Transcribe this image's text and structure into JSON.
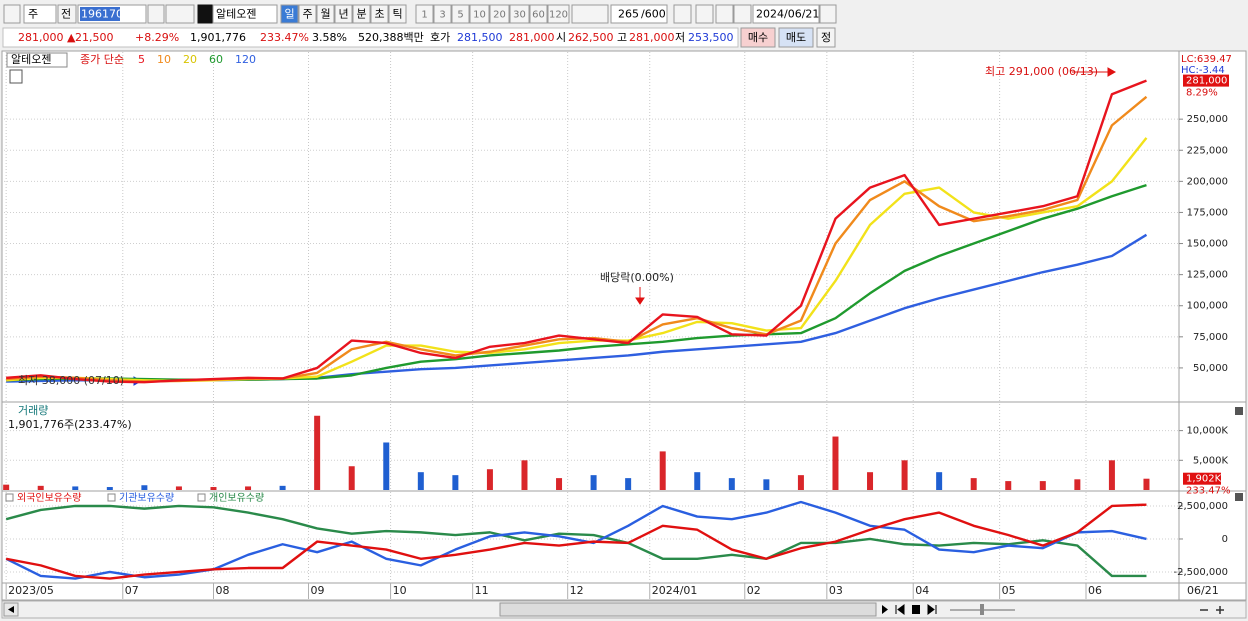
{
  "toolbar": {
    "market": "주",
    "prev": "전",
    "code": "196170",
    "name": "알테오젠",
    "periods": [
      "일",
      "주",
      "월",
      "년",
      "분",
      "초",
      "틱"
    ],
    "intervals": [
      "1",
      "3",
      "5",
      "10",
      "20",
      "30",
      "60",
      "120"
    ],
    "count": "265",
    "max": "/600",
    "date": "2024/06/21"
  },
  "quote": {
    "price": "281,000 ▲",
    "change": "21,500",
    "rate": "+8.29%",
    "volume": "1,901,776",
    "volume_rate": "233.47%",
    "turnover": "3.58%",
    "amount": "520,388백만",
    "ask_label": "호가",
    "ask": "281,500",
    "bid": "281,000",
    "open_label": "시",
    "open": "262,500",
    "high_label": "고",
    "high": "281,000",
    "low_label": "저",
    "low": "253,500",
    "buy": "매수",
    "sell": "매도",
    "fix": "정"
  },
  "chart_data": [
    {
      "type": "line",
      "name": "알테오젠",
      "legend_title": "종가 단순",
      "x": [
        0,
        8,
        16,
        24,
        32,
        40,
        48,
        56,
        64,
        72,
        80,
        88,
        96,
        104,
        112,
        120,
        128,
        136,
        144,
        152,
        160,
        168,
        176,
        184,
        192,
        200,
        208,
        216,
        224,
        232,
        240,
        248,
        256,
        264
      ],
      "series": [
        {
          "name": "5",
          "color": "#e8141e",
          "values": [
            42000,
            44000,
            41000,
            39000,
            38500,
            40000,
            41000,
            42000,
            41500,
            50000,
            72000,
            70000,
            62000,
            58000,
            67000,
            70000,
            76000,
            73000,
            70000,
            93000,
            91000,
            77000,
            76000,
            100000,
            170000,
            195000,
            205000,
            165000,
            170000,
            175000,
            180000,
            188000,
            270000,
            281000
          ]
        },
        {
          "name": "10",
          "color": "#f08a1c",
          "values": [
            41000,
            43000,
            42000,
            40000,
            39000,
            39500,
            40500,
            41500,
            41500,
            46000,
            65000,
            71000,
            65000,
            60000,
            63000,
            68000,
            73000,
            74000,
            71000,
            85000,
            90000,
            82000,
            77000,
            88000,
            150000,
            185000,
            200000,
            180000,
            168000,
            172000,
            177000,
            185000,
            245000,
            268000
          ]
        },
        {
          "name": "20",
          "color": "#f2e21a",
          "values": [
            40000,
            42000,
            42000,
            41000,
            40000,
            39500,
            40000,
            41000,
            41500,
            43000,
            55000,
            68000,
            68000,
            63000,
            62000,
            65000,
            70000,
            72000,
            72000,
            78000,
            87000,
            86000,
            80000,
            82000,
            120000,
            165000,
            190000,
            195000,
            175000,
            170000,
            175000,
            180000,
            200000,
            235000
          ]
        },
        {
          "name": "60",
          "color": "#1f9a2e",
          "values": [
            40000,
            41000,
            41500,
            41500,
            41000,
            40500,
            40500,
            40500,
            41000,
            41500,
            44000,
            50000,
            55000,
            57000,
            60000,
            62000,
            64000,
            67000,
            69000,
            71000,
            74000,
            76000,
            77000,
            78000,
            90000,
            110000,
            128000,
            140000,
            150000,
            160000,
            170000,
            178000,
            188000,
            197000
          ]
        },
        {
          "name": "120",
          "color": "#2f5fe0",
          "values": [
            39000,
            39500,
            40000,
            40000,
            40000,
            40000,
            40000,
            40500,
            41000,
            42000,
            45000,
            47000,
            49000,
            50000,
            52000,
            54000,
            56000,
            58000,
            60000,
            63000,
            65000,
            67000,
            69000,
            71000,
            78000,
            88000,
            98000,
            106000,
            113000,
            120000,
            127000,
            133000,
            140000,
            157000
          ]
        }
      ],
      "ylim": [
        23400,
        304000
      ],
      "yticks": [
        {
          "value": 50000,
          "label": "50,000"
        },
        {
          "value": 75000,
          "label": "75,000"
        },
        {
          "value": 100000,
          "label": "100,000"
        },
        {
          "value": 125000,
          "label": "125,000"
        },
        {
          "value": 150000,
          "label": "150,000"
        },
        {
          "value": 175000,
          "label": "175,000"
        },
        {
          "value": 200000,
          "label": "200,000"
        },
        {
          "value": 225000,
          "label": "225,000"
        },
        {
          "value": 250000,
          "label": "250,000"
        }
      ],
      "grid": true,
      "annotations": [
        "최고 291,000 (06/13)",
        "최저 38,000 (07/10)",
        "배당락(0.00%)"
      ],
      "top_labels": [
        "LC:639.47",
        "HC:-3.44"
      ],
      "last_value": {
        "value": 281000,
        "label": "281,000"
      },
      "last_rate": "8.29%"
    },
    {
      "type": "bar",
      "title": "거래량",
      "subtitle": "1,901,776주(233.47%)",
      "up_color": "#d9262a",
      "down_color": "#1f5fd1",
      "values": [
        900000,
        700000,
        600000,
        500000,
        800000,
        600000,
        500000,
        600000,
        700000,
        12500000,
        4000000,
        8000000,
        3000000,
        2500000,
        3500000,
        5000000,
        2000000,
        2500000,
        2000000,
        6500000,
        3000000,
        2000000,
        1800000,
        2500000,
        9000000,
        3000000,
        5000000,
        3000000,
        2000000,
        1500000,
        1500000,
        1800000,
        5000000,
        1901776
      ],
      "ylim": [
        0,
        14480000
      ],
      "yticks": [
        {
          "value": 5000000,
          "label": "5,000K"
        },
        {
          "value": 10000000,
          "label": "10,000K"
        }
      ],
      "last_value": {
        "value": 1902000,
        "label": "1,902K"
      },
      "last_rate": "233.47%"
    },
    {
      "type": "line",
      "series": [
        {
          "name": "외국인보유수량",
          "color": "#e01010",
          "values": [
            -1500000,
            -2000000,
            -2800000,
            -3000000,
            -2700000,
            -2500000,
            -2300000,
            -2200000,
            -2200000,
            -200000,
            -500000,
            -800000,
            -1500000,
            -1200000,
            -800000,
            -300000,
            -500000,
            -200000,
            -300000,
            1000000,
            700000,
            -800000,
            -1500000,
            -700000,
            -200000,
            700000,
            1500000,
            2000000,
            1000000,
            300000,
            -500000,
            500000,
            2500000,
            2600000
          ]
        },
        {
          "name": "기관보유수량",
          "color": "#2a5fe0",
          "values": [
            -1500000,
            -2800000,
            -3000000,
            -2500000,
            -2900000,
            -2700000,
            -2300000,
            -1200000,
            -400000,
            -1000000,
            -200000,
            -1500000,
            -2000000,
            -800000,
            200000,
            500000,
            200000,
            -300000,
            1000000,
            2500000,
            1700000,
            1500000,
            2000000,
            2800000,
            2000000,
            1000000,
            700000,
            -800000,
            -1000000,
            -500000,
            -700000,
            500000,
            600000,
            0
          ]
        },
        {
          "name": "개인보유수량",
          "color": "#2a8a4a",
          "values": [
            1500000,
            2200000,
            2500000,
            2500000,
            2300000,
            2500000,
            2400000,
            2000000,
            1500000,
            800000,
            400000,
            600000,
            500000,
            300000,
            500000,
            -100000,
            400000,
            300000,
            -300000,
            -1500000,
            -1500000,
            -1200000,
            -1500000,
            -300000,
            -300000,
            0,
            -400000,
            -500000,
            -300000,
            -400000,
            -100000,
            -500000,
            -2800000,
            -2800000
          ]
        }
      ],
      "ylim": [
        -3260000,
        3560000
      ],
      "yticks": [
        {
          "value": 2500000,
          "label": "2,500,000"
        },
        0,
        {
          "value": -2500000,
          "label": "-2,500,000"
        }
      ],
      "xlim": [
        -0.5,
        271.3
      ],
      "xticks": [
        {
          "value": 0,
          "label": "2023/05"
        },
        {
          "value": 27,
          "label": "07"
        },
        {
          "value": 48,
          "label": "08"
        },
        {
          "value": 70,
          "label": "09"
        },
        {
          "value": 89,
          "label": "10"
        },
        {
          "value": 108,
          "label": "11"
        },
        {
          "value": 130,
          "label": "12"
        },
        {
          "value": 149,
          "label": "2024/01"
        },
        {
          "value": 171,
          "label": "02"
        },
        {
          "value": 190,
          "label": "03"
        },
        {
          "value": 210,
          "label": "04"
        },
        {
          "value": 230,
          "label": "05"
        },
        {
          "value": 250,
          "label": "06"
        }
      ],
      "end_label": "06/21"
    }
  ]
}
